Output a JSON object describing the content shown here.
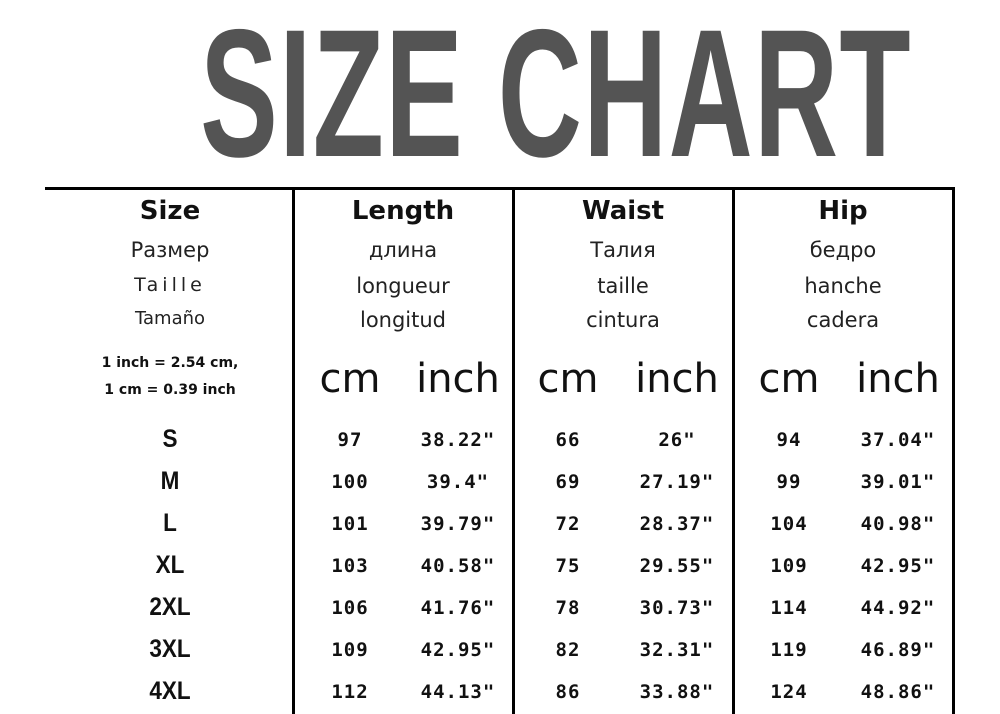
{
  "title": "SIZE CHART",
  "columns": [
    {
      "name": "Size",
      "ru": "Размер",
      "fr": "Taille",
      "es": "Tamaño"
    },
    {
      "name": "Length",
      "ru": "длина",
      "fr": "longueur",
      "es": "longitud"
    },
    {
      "name": "Waist",
      "ru": "Талия",
      "fr": "taille",
      "es": "cintura"
    },
    {
      "name": "Hip",
      "ru": "бедро",
      "fr": "hanche",
      "es": "cadera"
    }
  ],
  "conversion": [
    "1 inch = 2.54 cm,",
    "1 cm = 0.39 inch"
  ],
  "units": {
    "cm": "cm",
    "inch": "inch"
  },
  "rows": [
    {
      "size": "S",
      "length_cm": "97",
      "length_in": "38.22\"",
      "waist_cm": "66",
      "waist_in": "26\"",
      "hip_cm": "94",
      "hip_in": "37.04\""
    },
    {
      "size": "M",
      "length_cm": "100",
      "length_in": "39.4\"",
      "waist_cm": "69",
      "waist_in": "27.19\"",
      "hip_cm": "99",
      "hip_in": "39.01\""
    },
    {
      "size": "L",
      "length_cm": "101",
      "length_in": "39.79\"",
      "waist_cm": "72",
      "waist_in": "28.37\"",
      "hip_cm": "104",
      "hip_in": "40.98\""
    },
    {
      "size": "XL",
      "length_cm": "103",
      "length_in": "40.58\"",
      "waist_cm": "75",
      "waist_in": "29.55\"",
      "hip_cm": "109",
      "hip_in": "42.95\""
    },
    {
      "size": "2XL",
      "length_cm": "106",
      "length_in": "41.76\"",
      "waist_cm": "78",
      "waist_in": "30.73\"",
      "hip_cm": "114",
      "hip_in": "44.92\""
    },
    {
      "size": "3XL",
      "length_cm": "109",
      "length_in": "42.95\"",
      "waist_cm": "82",
      "waist_in": "32.31\"",
      "hip_cm": "119",
      "hip_in": "46.89\""
    },
    {
      "size": "4XL",
      "length_cm": "112",
      "length_in": "44.13\"",
      "waist_cm": "86",
      "waist_in": "33.88\"",
      "hip_cm": "124",
      "hip_in": "48.86\""
    }
  ]
}
